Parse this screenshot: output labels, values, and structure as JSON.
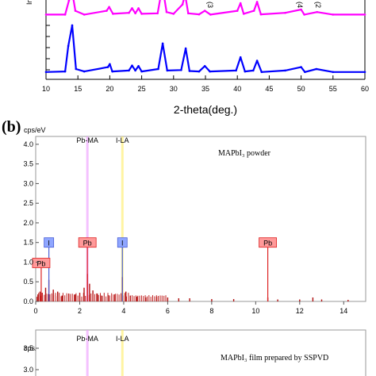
{
  "panel_b_label": "(b)",
  "chart_data": [
    {
      "type": "line",
      "panel": "a",
      "xlabel": "2-theta(deg.)",
      "ylabel": "In",
      "xlim": [
        10,
        60
      ],
      "xticks": [
        10,
        15,
        20,
        25,
        30,
        35,
        40,
        45,
        50,
        55,
        60
      ],
      "peak_annotations": [
        "(3",
        "(4",
        "(2"
      ],
      "series": [
        {
          "color": "#ff00ff",
          "x": [
            10,
            13,
            13.6,
            14.1,
            14.6,
            16,
            19.5,
            19.9,
            20.5,
            23,
            23.5,
            24,
            24.5,
            25,
            27.5,
            28,
            28.4,
            28.9,
            30,
            31.4,
            31.8,
            32.3,
            34,
            34.9,
            35.8,
            40,
            40.5,
            41,
            42.6,
            43.1,
            43.7,
            47.5,
            50,
            50.5,
            52.5,
            55,
            60
          ],
          "y": [
            0.05,
            0.05,
            0.6,
            0.95,
            0.2,
            0.05,
            0.2,
            0.35,
            0.08,
            0.12,
            0.3,
            0.1,
            0.3,
            0.08,
            0.1,
            0.8,
            0.95,
            0.15,
            0.08,
            0.45,
            0.85,
            0.1,
            0.06,
            0.2,
            0.05,
            0.2,
            0.5,
            0.08,
            0.2,
            0.55,
            0.06,
            0.12,
            0.25,
            0.05,
            0.15,
            0.05,
            0.05
          ]
        },
        {
          "color": "#0000ff",
          "x": [
            10,
            13,
            13.5,
            14.1,
            14.7,
            16,
            19.7,
            20,
            20.4,
            23,
            23.5,
            24,
            24.5,
            25,
            27.6,
            28.3,
            29,
            31.2,
            31.9,
            32.5,
            34,
            34.9,
            35.7,
            39.8,
            40.5,
            41.2,
            42.5,
            43.1,
            43.8,
            47.5,
            50,
            50.6,
            52.4,
            55,
            60
          ],
          "y": [
            0.02,
            0.03,
            0.55,
            0.97,
            0.08,
            0.03,
            0.12,
            0.18,
            0.03,
            0.05,
            0.15,
            0.05,
            0.14,
            0.03,
            0.08,
            0.6,
            0.05,
            0.06,
            0.5,
            0.04,
            0.03,
            0.14,
            0.03,
            0.05,
            0.32,
            0.03,
            0.05,
            0.25,
            0.02,
            0.05,
            0.12,
            0.02,
            0.08,
            0.02,
            0.02
          ]
        }
      ]
    },
    {
      "type": "bar",
      "panel": "b",
      "ylabel": "cps/eV",
      "xlim": [
        0,
        15
      ],
      "ylim": [
        0,
        4.2
      ],
      "xticks": [
        0,
        2,
        4,
        6,
        8,
        10,
        12,
        14
      ],
      "yticks": [
        "0.0",
        "0.5",
        "1.0",
        "1.5",
        "2.0",
        "2.5",
        "3.0",
        "3.5",
        "4.0"
      ],
      "legend_text": "MAPbI₃ powder",
      "marker_lines": [
        {
          "label": "Pb-MA",
          "x": 2.35,
          "color": "#ee99ff"
        },
        {
          "label": "I-LA",
          "x": 3.94,
          "color": "#ffee66"
        }
      ],
      "element_labels": [
        {
          "label": "I",
          "x": 0.6,
          "y": 1.5,
          "bg": "#8fa6ff",
          "line": "#4a5fd6"
        },
        {
          "label": "Pb",
          "x": 2.35,
          "y": 1.5,
          "bg": "#ff9999",
          "line": "#dd2222"
        },
        {
          "label": "I",
          "x": 3.94,
          "y": 1.5,
          "bg": "#8fa6ff",
          "line": "#4a5fd6"
        },
        {
          "label": "Pb",
          "x": 10.55,
          "y": 1.5,
          "bg": "#ff9999",
          "line": "#dd2222"
        },
        {
          "label": "Pb",
          "x": 0.25,
          "y": 0.98,
          "bg": "#ff9999",
          "line": "#dd2222"
        }
      ],
      "peaks_x": [
        0.1,
        0.2,
        0.3,
        0.45,
        0.6,
        0.8,
        1.0,
        1.2,
        1.5,
        1.8,
        2.0,
        2.2,
        2.35,
        2.45,
        2.6,
        2.8,
        3.0,
        3.3,
        3.6,
        3.94,
        4.1,
        4.3,
        4.6,
        5.0,
        5.5,
        6.0,
        6.5,
        7.0,
        8.0,
        9.0,
        10.55,
        11.0,
        12.0,
        12.6,
        13.0,
        14.2
      ],
      "peaks_y": [
        0.18,
        0.25,
        0.22,
        0.35,
        0.55,
        0.3,
        0.25,
        0.15,
        0.2,
        0.18,
        0.22,
        0.35,
        0.7,
        0.45,
        0.28,
        0.2,
        0.15,
        0.16,
        0.18,
        0.62,
        0.25,
        0.15,
        0.12,
        0.1,
        0.12,
        0.1,
        0.08,
        0.08,
        0.06,
        0.06,
        0.1,
        0.05,
        0.05,
        0.1,
        0.05,
        0.04
      ]
    },
    {
      "type": "bar",
      "panel": "c",
      "ylabel": "cps/eV",
      "yticks": [
        "3.0",
        "3.5"
      ],
      "legend_text": "MAPbI₃ film prepared by SSPVD",
      "marker_lines": [
        {
          "label": "Pb-MA",
          "x": 2.35,
          "color": "#ee99ff"
        },
        {
          "label": "I-LA",
          "x": 3.94,
          "color": "#ffee66"
        }
      ]
    }
  ]
}
